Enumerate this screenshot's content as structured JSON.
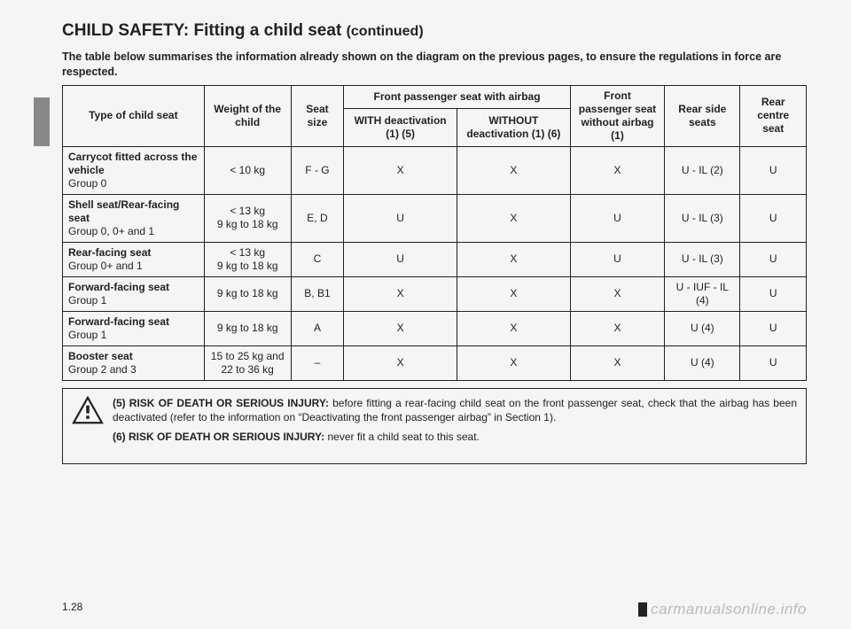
{
  "title_main": "CHILD SAFETY: Fitting a child seat ",
  "title_cont": "(continued)",
  "intro": "The table below summarises the information already shown on the diagram on the previous pages, to ensure the regulations in force are respected.",
  "headers": {
    "type": "Type of child seat",
    "weight": "Weight of the child",
    "size": "Seat size",
    "front_span": "Front passenger seat with airbag",
    "with_deact": "WITH deactivation (1) (5)",
    "without_deact": "WITHOUT deactivation (1) (6)",
    "front_no_airbag": "Front passenger seat without airbag\n(1)",
    "rear_side": "Rear side seats",
    "rear_centre": "Rear centre seat"
  },
  "rows": [
    {
      "name": "Carrycot fitted across the vehicle",
      "sub": "Group 0",
      "weight": "< 10 kg",
      "size": "F - G",
      "with": "X",
      "without": "X",
      "no_airbag": "X",
      "rear_side": "U - IL (2)",
      "rear_centre": "U"
    },
    {
      "name": "Shell seat/Rear-facing seat",
      "sub": "Group 0, 0+ and 1",
      "weight": "< 13 kg\n9 kg to 18 kg",
      "size": "E, D",
      "with": "U",
      "without": "X",
      "no_airbag": "U",
      "rear_side": "U - IL (3)",
      "rear_centre": "U"
    },
    {
      "name": "Rear-facing seat",
      "sub": "Group  0+ and 1",
      "weight": "< 13 kg\n9 kg to 18 kg",
      "size": "C",
      "with": "U",
      "without": "X",
      "no_airbag": "U",
      "rear_side": "U - IL (3)",
      "rear_centre": "U"
    },
    {
      "name": "Forward-facing seat",
      "sub": "Group 1",
      "weight": "9 kg to 18 kg",
      "size": "B, B1",
      "with": "X",
      "without": "X",
      "no_airbag": "X",
      "rear_side": "U - IUF - IL (4)",
      "rear_centre": "U"
    },
    {
      "name": "Forward-facing seat",
      "sub": "Group 1",
      "weight": "9 kg to 18 kg",
      "size": "A",
      "with": "X",
      "without": "X",
      "no_airbag": "X",
      "rear_side": "U (4)",
      "rear_centre": "U"
    },
    {
      "name": "Booster seat",
      "sub": "Group 2 and 3",
      "weight": "15 to 25 kg and\n22 to 36 kg",
      "size": "–",
      "with": "X",
      "without": "X",
      "no_airbag": "X",
      "rear_side": "U (4)",
      "rear_centre": "U"
    }
  ],
  "warning": {
    "line5_label": "(5) RISK OF DEATH OR SERIOUS INJURY: ",
    "line5_text": "before fitting a rear-facing child seat on the front passenger seat, check that the airbag has been deactivated (refer to the information on “Deactivating the front passenger airbag” in Section 1).",
    "line6_label": "(6) RISK OF DEATH OR SERIOUS INJURY: ",
    "line6_text": "never fit a child seat to this seat."
  },
  "page_num": "1.28",
  "watermark": "carmanualsonline.info"
}
